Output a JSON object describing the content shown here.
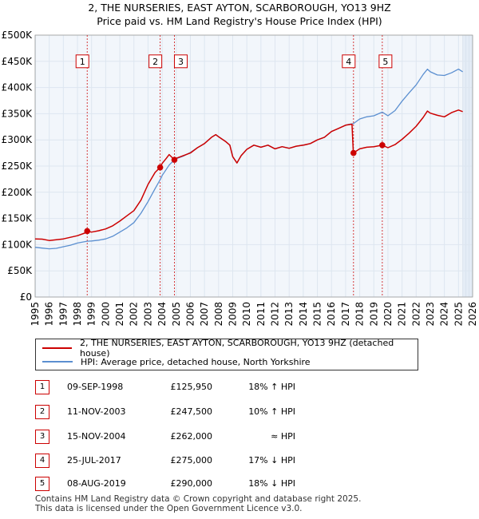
{
  "header": {
    "title_line1": "2, THE NURSERIES, EAST AYTON, SCARBOROUGH, YO13 9HZ",
    "title_line2": "Price paid vs. HM Land Registry's House Price Index (HPI)"
  },
  "chart_data": {
    "type": "line",
    "xlim": [
      1995,
      2026
    ],
    "ylim": [
      0,
      500000
    ],
    "x_ticks": [
      "1995",
      "1996",
      "1997",
      "1998",
      "1999",
      "2000",
      "2001",
      "2002",
      "2003",
      "2004",
      "2005",
      "2006",
      "2007",
      "2008",
      "2009",
      "2010",
      "2011",
      "2012",
      "2013",
      "2014",
      "2015",
      "2016",
      "2017",
      "2018",
      "2019",
      "2020",
      "2021",
      "2022",
      "2023",
      "2024",
      "2025",
      "2026"
    ],
    "y_ticks": [
      {
        "value": 0,
        "label": "£0"
      },
      {
        "value": 50000,
        "label": "£50K"
      },
      {
        "value": 100000,
        "label": "£100K"
      },
      {
        "value": 150000,
        "label": "£150K"
      },
      {
        "value": 200000,
        "label": "£200K"
      },
      {
        "value": 250000,
        "label": "£250K"
      },
      {
        "value": 300000,
        "label": "£300K"
      },
      {
        "value": 350000,
        "label": "£350K"
      },
      {
        "value": 400000,
        "label": "£400K"
      },
      {
        "value": 450000,
        "label": "£450K"
      },
      {
        "value": 500000,
        "label": "£500K"
      }
    ],
    "colors": {
      "property": "#cc0000",
      "hpi": "#5b8fd0",
      "grid": "#dde6f0",
      "band": "#e4ecf6",
      "sale_line": "#cc0000"
    },
    "series": [
      {
        "name": "2, THE NURSERIES, EAST AYTON, SCARBOROUGH, YO13 9HZ (detached house)",
        "key": "property",
        "points": [
          [
            1995.0,
            111000
          ],
          [
            1995.5,
            110500
          ],
          [
            1996.0,
            108000
          ],
          [
            1996.5,
            109500
          ],
          [
            1997.0,
            111000
          ],
          [
            1997.5,
            114000
          ],
          [
            1998.0,
            117000
          ],
          [
            1998.5,
            122000
          ],
          [
            1998.69,
            125950
          ],
          [
            1999.0,
            124000
          ],
          [
            1999.5,
            126500
          ],
          [
            2000.0,
            130000
          ],
          [
            2000.5,
            136000
          ],
          [
            2001.0,
            145000
          ],
          [
            2001.5,
            155000
          ],
          [
            2002.0,
            165000
          ],
          [
            2002.5,
            185000
          ],
          [
            2003.0,
            215000
          ],
          [
            2003.5,
            238000
          ],
          [
            2003.86,
            247500
          ],
          [
            2004.0,
            255000
          ],
          [
            2004.3,
            265000
          ],
          [
            2004.5,
            272000
          ],
          [
            2004.87,
            262000
          ],
          [
            2005.0,
            265000
          ],
          [
            2005.5,
            270000
          ],
          [
            2006.0,
            275000
          ],
          [
            2006.5,
            285000
          ],
          [
            2007.0,
            293000
          ],
          [
            2007.5,
            305000
          ],
          [
            2007.8,
            310000
          ],
          [
            2008.0,
            306000
          ],
          [
            2008.5,
            297000
          ],
          [
            2008.8,
            290000
          ],
          [
            2009.0,
            268000
          ],
          [
            2009.3,
            256000
          ],
          [
            2009.6,
            270000
          ],
          [
            2010.0,
            282000
          ],
          [
            2010.5,
            290000
          ],
          [
            2011.0,
            286000
          ],
          [
            2011.5,
            290000
          ],
          [
            2012.0,
            283000
          ],
          [
            2012.5,
            287000
          ],
          [
            2013.0,
            284000
          ],
          [
            2013.5,
            288000
          ],
          [
            2014.0,
            290000
          ],
          [
            2014.5,
            293000
          ],
          [
            2015.0,
            300000
          ],
          [
            2015.5,
            305000
          ],
          [
            2016.0,
            316000
          ],
          [
            2016.5,
            322000
          ],
          [
            2017.0,
            328000
          ],
          [
            2017.45,
            330000
          ],
          [
            2017.55,
            275000
          ],
          [
            2018.0,
            283000
          ],
          [
            2018.5,
            286000
          ],
          [
            2019.0,
            287000
          ],
          [
            2019.6,
            290000
          ],
          [
            2020.0,
            285000
          ],
          [
            2020.5,
            291000
          ],
          [
            2021.0,
            301000
          ],
          [
            2021.5,
            313000
          ],
          [
            2022.0,
            326000
          ],
          [
            2022.5,
            343000
          ],
          [
            2022.8,
            355000
          ],
          [
            2023.0,
            351000
          ],
          [
            2023.5,
            347000
          ],
          [
            2024.0,
            344000
          ],
          [
            2024.5,
            352000
          ],
          [
            2025.0,
            357000
          ],
          [
            2025.3,
            354000
          ]
        ]
      },
      {
        "name": "HPI: Average price, detached house, North Yorkshire",
        "key": "hpi",
        "points": [
          [
            1995.0,
            95000
          ],
          [
            1995.5,
            93500
          ],
          [
            1996.0,
            92000
          ],
          [
            1996.5,
            93000
          ],
          [
            1997.0,
            96000
          ],
          [
            1997.5,
            99000
          ],
          [
            1998.0,
            103000
          ],
          [
            1998.69,
            106500
          ],
          [
            1999.0,
            107000
          ],
          [
            1999.5,
            108500
          ],
          [
            2000.0,
            111000
          ],
          [
            2000.5,
            116000
          ],
          [
            2001.0,
            124000
          ],
          [
            2001.5,
            132000
          ],
          [
            2002.0,
            142000
          ],
          [
            2002.5,
            160000
          ],
          [
            2003.0,
            182000
          ],
          [
            2003.5,
            207000
          ],
          [
            2003.86,
            224000
          ],
          [
            2004.0,
            232000
          ],
          [
            2004.5,
            252000
          ],
          [
            2004.87,
            262000
          ],
          [
            2005.0,
            264000
          ],
          [
            2005.5,
            269000
          ],
          [
            2006.0,
            276000
          ],
          [
            2006.5,
            285000
          ],
          [
            2007.0,
            293000
          ],
          [
            2007.5,
            305000
          ],
          [
            2007.8,
            310000
          ],
          [
            2008.0,
            306000
          ],
          [
            2008.5,
            297000
          ],
          [
            2008.8,
            290000
          ],
          [
            2009.0,
            268000
          ],
          [
            2009.3,
            256000
          ],
          [
            2009.6,
            270000
          ],
          [
            2010.0,
            282000
          ],
          [
            2010.5,
            290000
          ],
          [
            2011.0,
            286000
          ],
          [
            2011.5,
            290000
          ],
          [
            2012.0,
            283000
          ],
          [
            2012.5,
            287000
          ],
          [
            2013.0,
            284000
          ],
          [
            2013.5,
            288000
          ],
          [
            2014.0,
            290000
          ],
          [
            2014.5,
            293000
          ],
          [
            2015.0,
            300000
          ],
          [
            2015.5,
            305000
          ],
          [
            2016.0,
            316000
          ],
          [
            2016.5,
            322000
          ],
          [
            2017.0,
            328000
          ],
          [
            2017.3,
            330000
          ],
          [
            2017.55,
            331000
          ],
          [
            2018.0,
            340000
          ],
          [
            2018.5,
            344000
          ],
          [
            2019.0,
            346000
          ],
          [
            2019.6,
            353000
          ],
          [
            2020.0,
            346000
          ],
          [
            2020.5,
            356000
          ],
          [
            2021.0,
            374000
          ],
          [
            2021.5,
            390000
          ],
          [
            2022.0,
            405000
          ],
          [
            2022.5,
            425000
          ],
          [
            2022.8,
            435000
          ],
          [
            2023.0,
            430000
          ],
          [
            2023.5,
            424000
          ],
          [
            2024.0,
            423000
          ],
          [
            2024.5,
            428000
          ],
          [
            2025.0,
            435000
          ],
          [
            2025.3,
            430000
          ]
        ]
      }
    ],
    "sales": [
      {
        "num": "1",
        "x": 1998.69,
        "price": 125950,
        "date": "09-SEP-1998",
        "price_label": "£125,950",
        "hpi": "18% ↑ HPI",
        "box_value": 450000
      },
      {
        "num": "2",
        "x": 2003.86,
        "price": 247500,
        "date": "11-NOV-2003",
        "price_label": "£247,500",
        "hpi": "10% ↑ HPI",
        "box_value": 450000
      },
      {
        "num": "3",
        "x": 2004.87,
        "price": 262000,
        "date": "15-NOV-2004",
        "price_label": "£262,000",
        "hpi": "≈ HPI",
        "box_value": 450000
      },
      {
        "num": "4",
        "x": 2017.56,
        "price": 275000,
        "date": "25-JUL-2017",
        "price_label": "£275,000",
        "hpi": "17% ↓ HPI",
        "box_value": 450000
      },
      {
        "num": "5",
        "x": 2019.6,
        "price": 290000,
        "date": "08-AUG-2019",
        "price_label": "£290,000",
        "hpi": "18% ↓ HPI",
        "box_value": 450000
      }
    ],
    "shade_ranges": [
      [
        1995.0,
        1995.05
      ],
      [
        2025.3,
        2026.0
      ]
    ]
  },
  "legend": {
    "property_label": "2, THE NURSERIES, EAST AYTON, SCARBOROUGH, YO13 9HZ (detached house)",
    "hpi_label": "HPI: Average price, detached house, North Yorkshire"
  },
  "footer": {
    "line1": "Contains HM Land Registry data © Crown copyright and database right 2025.",
    "line2": "This data is licensed under the Open Government Licence v3.0."
  }
}
